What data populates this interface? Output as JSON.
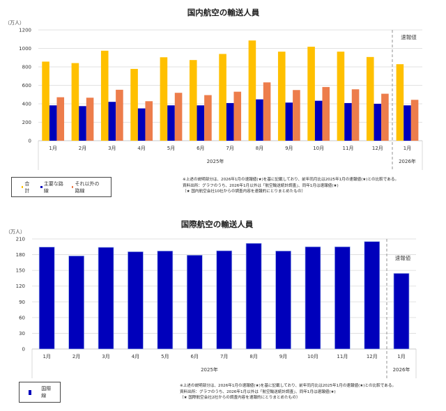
{
  "chart_data": [
    {
      "type": "bar",
      "title": "国内航空の輸送人員",
      "ylabel": "（万人）",
      "ylim": [
        0,
        1200
      ],
      "yticks": [
        0,
        200,
        400,
        600,
        800,
        1000,
        1200
      ],
      "grid": true,
      "categories": [
        "1月",
        "2月",
        "3月",
        "4月",
        "5月",
        "6月",
        "7月",
        "8月",
        "9月",
        "10月",
        "11月",
        "12月",
        "1月"
      ],
      "year_groups": [
        {
          "label": "2025年",
          "count": 12
        },
        {
          "label": "2026年",
          "count": 1
        }
      ],
      "annotation": "速報値",
      "series": [
        {
          "name": "合計",
          "color": "#FFC000",
          "values": [
            857,
            841,
            975,
            778,
            904,
            874,
            940,
            1086,
            965,
            1018,
            965,
            907,
            829
          ]
        },
        {
          "name": "主要な路線",
          "color": "#0000BB",
          "values": [
            383,
            375,
            421,
            350,
            383,
            383,
            408,
            448,
            413,
            433,
            408,
            400,
            383
          ]
        },
        {
          "name": "それ以外の路線",
          "color": "#ED7D4B",
          "values": [
            471,
            466,
            552,
            428,
            519,
            494,
            531,
            632,
            549,
            582,
            557,
            509,
            443
          ]
        }
      ],
      "legend_position": "bottom-left",
      "notes": [
        "※上述の説明部分は、2026年1月の速報値(★)を基に記載しており、前年同月比は2025年1月の速報値(★)との比較である。",
        "資料出所：グラフのうち、2026年1月以外は「航空輸送統計調査」、同年1月は速報値(★)",
        "（★ 国内航空会社10社からの調査内容を速報的にとりまとめたもの）"
      ]
    },
    {
      "type": "bar",
      "title": "国際航空の輸送人員",
      "ylabel": "（万人）",
      "ylim": [
        0,
        210
      ],
      "yticks": [
        0,
        30,
        60,
        90,
        120,
        150,
        180,
        210
      ],
      "grid": true,
      "categories": [
        "1月",
        "2月",
        "3月",
        "4月",
        "5月",
        "6月",
        "7月",
        "8月",
        "9月",
        "10月",
        "11月",
        "12月",
        "1月"
      ],
      "year_groups": [
        {
          "label": "2025年",
          "count": 12
        },
        {
          "label": "2026年",
          "count": 1
        }
      ],
      "annotation": "速報値",
      "series": [
        {
          "name": "国際線",
          "color": "#0000BB",
          "values": [
            194.5,
            177.6,
            194,
            185.6,
            187,
            179,
            187.4,
            201.6,
            187,
            195,
            195,
            205,
            144.3
          ]
        }
      ],
      "legend_position": "bottom-left",
      "notes": [
        "※上述の説明部分は、2026年1月の速報値(★)を基に記載しており、前年同月比は2025年1月の速報値(★)との比較である。",
        "資料出所：グラフのうち、2026年1月以外は「航空輸送統計調査」、同年1月は速報値(★)",
        "（★ 国際航空会社2社からの調査内容を速報的にとりまとめたもの）"
      ]
    }
  ]
}
